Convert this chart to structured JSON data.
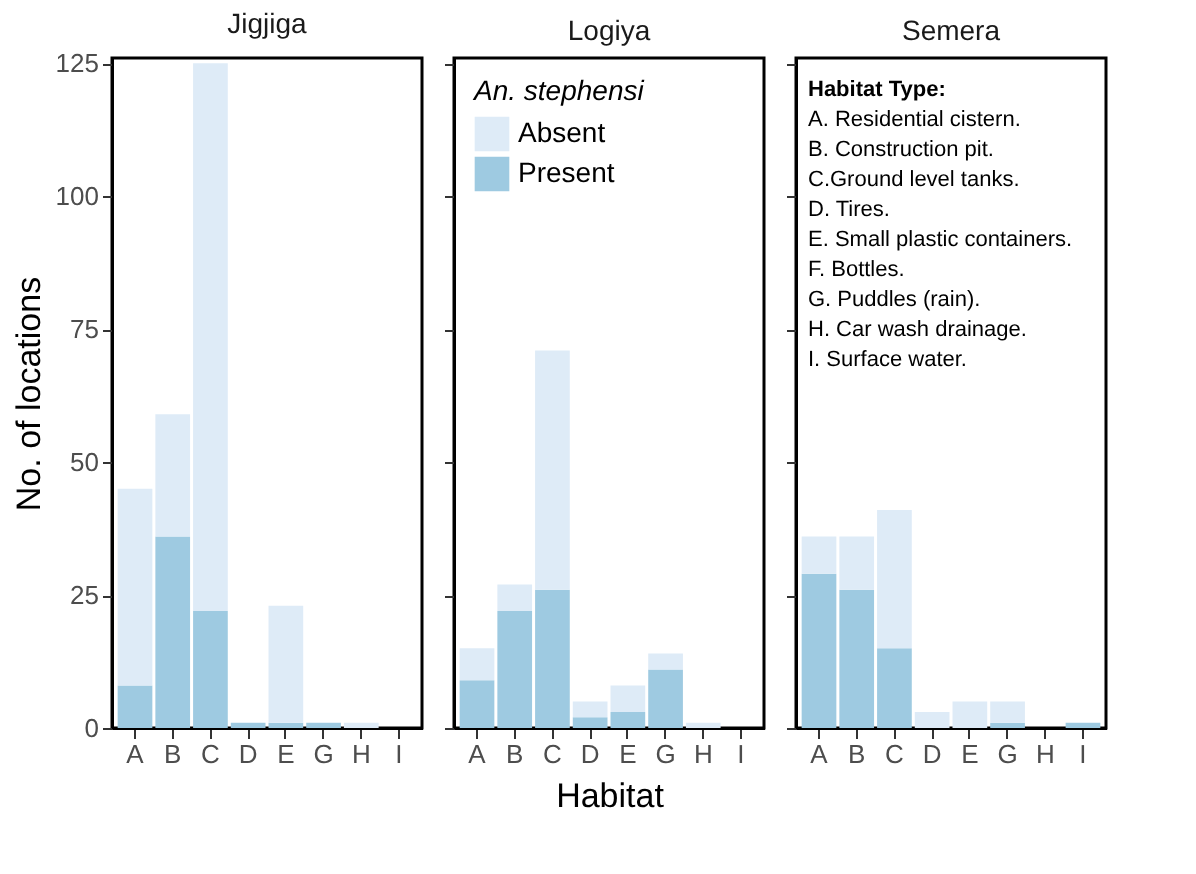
{
  "chart_data": [
    {
      "type": "bar",
      "title": "Jigjiga",
      "ylabel": "No. of locations",
      "stacked": true,
      "grid": false,
      "categories": [
        "A",
        "B",
        "C",
        "D",
        "E",
        "G",
        "H",
        "I"
      ],
      "ylim": [
        0,
        126
      ],
      "yticks": [
        0,
        25,
        50,
        75,
        100,
        125
      ],
      "series": [
        {
          "color": "#9ecae1",
          "values": [
            8,
            36,
            22,
            1,
            1,
            1,
            0,
            0
          ]
        },
        {
          "color": "#deebf7",
          "values": [
            37,
            23,
            103,
            0,
            22,
            0,
            1,
            0
          ]
        }
      ]
    },
    {
      "type": "bar",
      "title": "Logiya",
      "xlabel": "Habitat",
      "legend_title": "An. stephensi",
      "legend": "top left",
      "stacked": true,
      "grid": false,
      "tick_labels": "x",
      "categories": [
        "A",
        "B",
        "C",
        "D",
        "E",
        "G",
        "H",
        "I"
      ],
      "ylim": [
        0,
        126
      ],
      "yticks": [
        0,
        25,
        50,
        75,
        100,
        125
      ],
      "series": [
        {
          "name": "Present",
          "color": "#9ecae1",
          "values": [
            9,
            22,
            26,
            2,
            3,
            11,
            0,
            0
          ]
        },
        {
          "name": "Absent",
          "color": "#deebf7",
          "values": [
            6,
            5,
            45,
            3,
            5,
            3,
            1,
            0
          ]
        }
      ]
    },
    {
      "type": "bar",
      "title": "Semera",
      "stacked": true,
      "grid": false,
      "tick_labels": "x",
      "categories": [
        "A",
        "B",
        "C",
        "D",
        "E",
        "G",
        "H",
        "I"
      ],
      "ylim": [
        0,
        126
      ],
      "yticks": [
        0,
        25,
        50,
        75,
        100,
        125
      ],
      "annotations": [
        "Habitat Type:",
        "A. Residential cistern.",
        "B. Construction pit.",
        "C.Ground level tanks.",
        "D. Tires.",
        "E. Small plastic containers.",
        "F. Bottles.",
        "G. Puddles (rain).",
        "H. Car wash drainage.",
        "I. Surface water."
      ],
      "series": [
        {
          "color": "#9ecae1",
          "values": [
            29,
            26,
            15,
            0,
            0,
            1,
            0,
            1
          ]
        },
        {
          "color": "#deebf7",
          "values": [
            7,
            10,
            26,
            3,
            5,
            4,
            0,
            0
          ]
        }
      ]
    }
  ]
}
